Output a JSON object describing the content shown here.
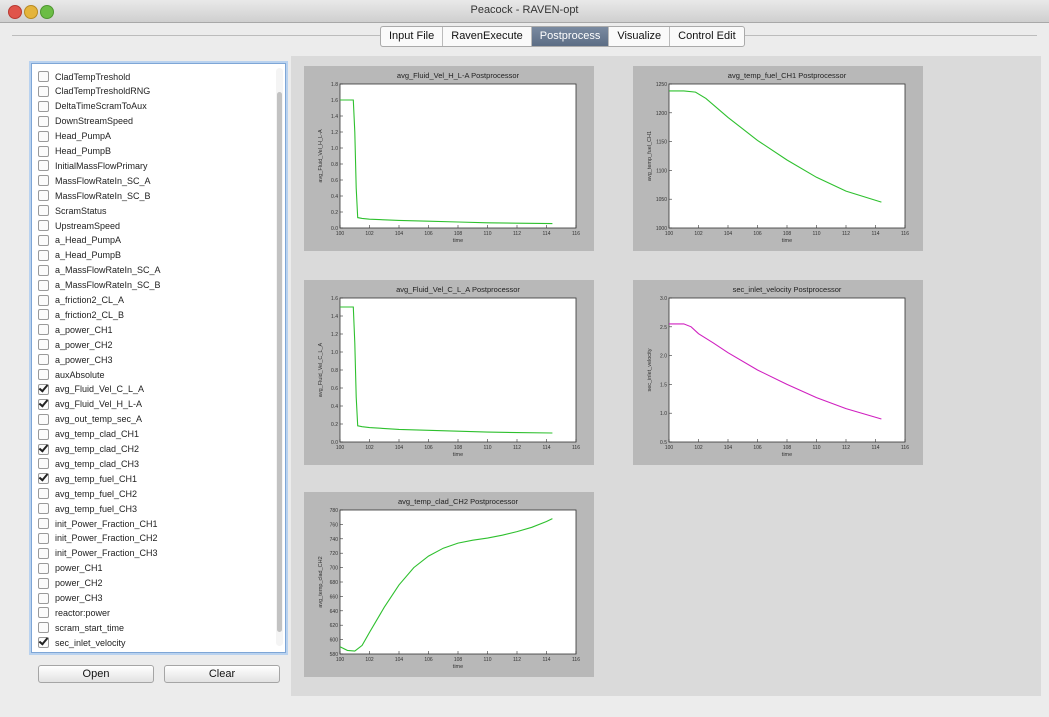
{
  "window": {
    "title": "Peacock - RAVEN-opt"
  },
  "tabs": [
    {
      "label": "Input File",
      "active": false
    },
    {
      "label": "RavenExecute",
      "active": false
    },
    {
      "label": "Postprocess",
      "active": true
    },
    {
      "label": "Visualize",
      "active": false
    },
    {
      "label": "Control Edit",
      "active": false
    }
  ],
  "variables": [
    {
      "label": "CladTempTreshold",
      "checked": false
    },
    {
      "label": "CladTempTresholdRNG",
      "checked": false
    },
    {
      "label": "DeltaTimeScramToAux",
      "checked": false
    },
    {
      "label": "DownStreamSpeed",
      "checked": false
    },
    {
      "label": "Head_PumpA",
      "checked": false
    },
    {
      "label": "Head_PumpB",
      "checked": false
    },
    {
      "label": "InitialMassFlowPrimary",
      "checked": false
    },
    {
      "label": "MassFlowRateIn_SC_A",
      "checked": false
    },
    {
      "label": "MassFlowRateIn_SC_B",
      "checked": false
    },
    {
      "label": "ScramStatus",
      "checked": false
    },
    {
      "label": "UpstreamSpeed",
      "checked": false
    },
    {
      "label": "a_Head_PumpA",
      "checked": false
    },
    {
      "label": "a_Head_PumpB",
      "checked": false
    },
    {
      "label": "a_MassFlowRateIn_SC_A",
      "checked": false
    },
    {
      "label": "a_MassFlowRateIn_SC_B",
      "checked": false
    },
    {
      "label": "a_friction2_CL_A",
      "checked": false
    },
    {
      "label": "a_friction2_CL_B",
      "checked": false
    },
    {
      "label": "a_power_CH1",
      "checked": false
    },
    {
      "label": "a_power_CH2",
      "checked": false
    },
    {
      "label": "a_power_CH3",
      "checked": false
    },
    {
      "label": "auxAbsolute",
      "checked": false
    },
    {
      "label": "avg_Fluid_Vel_C_L_A",
      "checked": true
    },
    {
      "label": "avg_Fluid_Vel_H_L-A",
      "checked": true
    },
    {
      "label": "avg_out_temp_sec_A",
      "checked": false
    },
    {
      "label": "avg_temp_clad_CH1",
      "checked": false
    },
    {
      "label": "avg_temp_clad_CH2",
      "checked": true
    },
    {
      "label": "avg_temp_clad_CH3",
      "checked": false
    },
    {
      "label": "avg_temp_fuel_CH1",
      "checked": true
    },
    {
      "label": "avg_temp_fuel_CH2",
      "checked": false
    },
    {
      "label": "avg_temp_fuel_CH3",
      "checked": false
    },
    {
      "label": "init_Power_Fraction_CH1",
      "checked": false
    },
    {
      "label": "init_Power_Fraction_CH2",
      "checked": false
    },
    {
      "label": "init_Power_Fraction_CH3",
      "checked": false
    },
    {
      "label": "power_CH1",
      "checked": false
    },
    {
      "label": "power_CH2",
      "checked": false
    },
    {
      "label": "power_CH3",
      "checked": false
    },
    {
      "label": "reactor:power",
      "checked": false
    },
    {
      "label": "scram_start_time",
      "checked": false
    },
    {
      "label": "sec_inlet_velocity",
      "checked": true
    }
  ],
  "buttons": {
    "open": "Open",
    "clear": "Clear"
  },
  "colors": {
    "green": "#2ec02e",
    "magenta": "#d020c0"
  },
  "chart_data": [
    {
      "type": "line",
      "title": "avg_Fluid_Vel_H_L-A Postprocessor",
      "xlabel": "time",
      "ylabel": "avg_Fluid_Vel_H_L-A",
      "xlim": [
        100,
        116
      ],
      "ylim": [
        0.0,
        1.8
      ],
      "xticks": [
        "100",
        "102",
        "104",
        "106",
        "108",
        "110",
        "112",
        "114",
        "116"
      ],
      "yticks": [
        "0.0",
        "0.2",
        "0.4",
        "0.6",
        "0.8",
        "1.0",
        "1.2",
        "1.4",
        "1.6",
        "1.8"
      ],
      "series": [
        {
          "color": "#2ec02e",
          "x": [
            100,
            100.4,
            100.9,
            101.0,
            101.1,
            101.2,
            101.5,
            102,
            104,
            106,
            108,
            110,
            112,
            114.4
          ],
          "y": [
            1.6,
            1.6,
            1.6,
            1.2,
            0.5,
            0.13,
            0.12,
            0.11,
            0.095,
            0.085,
            0.075,
            0.065,
            0.06,
            0.055
          ]
        }
      ]
    },
    {
      "type": "line",
      "title": "avg_temp_fuel_CH1 Postprocessor",
      "xlabel": "time",
      "ylabel": "avg_temp_fuel_CH1",
      "xlim": [
        100,
        116
      ],
      "ylim": [
        1000,
        1250
      ],
      "xticks": [
        "100",
        "102",
        "104",
        "106",
        "108",
        "110",
        "112",
        "114",
        "116"
      ],
      "yticks": [
        "1000",
        "1050",
        "1100",
        "1150",
        "1200",
        "1250"
      ],
      "series": [
        {
          "color": "#2ec02e",
          "x": [
            100,
            101,
            101.8,
            102.5,
            104,
            106,
            108,
            110,
            112,
            114.4
          ],
          "y": [
            1238,
            1238,
            1236,
            1225,
            1192,
            1152,
            1118,
            1088,
            1064,
            1045
          ]
        }
      ]
    },
    {
      "type": "line",
      "title": "avg_Fluid_Vel_C_L_A Postprocessor",
      "xlabel": "time",
      "ylabel": "avg_Fluid_Vel_C_L_A",
      "xlim": [
        100,
        116
      ],
      "ylim": [
        0.0,
        1.6
      ],
      "xticks": [
        "100",
        "102",
        "104",
        "106",
        "108",
        "110",
        "112",
        "114",
        "116"
      ],
      "yticks": [
        "0.0",
        "0.2",
        "0.4",
        "0.6",
        "0.8",
        "1.0",
        "1.2",
        "1.4",
        "1.6"
      ],
      "series": [
        {
          "color": "#2ec02e",
          "x": [
            100,
            100.4,
            100.9,
            101.0,
            101.1,
            101.2,
            101.5,
            102,
            104,
            106,
            108,
            110,
            112,
            114.4
          ],
          "y": [
            1.5,
            1.5,
            1.5,
            1.1,
            0.5,
            0.18,
            0.17,
            0.16,
            0.14,
            0.13,
            0.12,
            0.11,
            0.105,
            0.1
          ]
        }
      ]
    },
    {
      "type": "line",
      "title": "sec_inlet_velocity Postprocessor",
      "xlabel": "time",
      "ylabel": "sec_inlet_velocity",
      "xlim": [
        100,
        116
      ],
      "ylim": [
        0.5,
        3.0
      ],
      "xticks": [
        "100",
        "102",
        "104",
        "106",
        "108",
        "110",
        "112",
        "114",
        "116"
      ],
      "yticks": [
        "0.5",
        "1.0",
        "1.5",
        "2.0",
        "2.5",
        "3.0"
      ],
      "series": [
        {
          "color": "#d020c0",
          "x": [
            100,
            101,
            101.5,
            102,
            103,
            104,
            106,
            108,
            110,
            112,
            114.4
          ],
          "y": [
            2.55,
            2.55,
            2.5,
            2.38,
            2.22,
            2.05,
            1.75,
            1.5,
            1.27,
            1.08,
            0.9
          ]
        }
      ]
    },
    {
      "type": "line",
      "title": "avg_temp_clad_CH2 Postprocessor",
      "xlabel": "time",
      "ylabel": "avg_temp_clad_CH2",
      "xlim": [
        100,
        116
      ],
      "ylim": [
        580,
        780
      ],
      "xticks": [
        "100",
        "102",
        "104",
        "106",
        "108",
        "110",
        "112",
        "114",
        "116"
      ],
      "yticks": [
        "580",
        "600",
        "620",
        "640",
        "660",
        "680",
        "700",
        "720",
        "740",
        "760",
        "780"
      ],
      "series": [
        {
          "color": "#2ec02e",
          "x": [
            100,
            100.5,
            101,
            101.5,
            102,
            103,
            104,
            105,
            106,
            107,
            108,
            109,
            110,
            111,
            112,
            113,
            114,
            114.4
          ],
          "y": [
            590,
            585,
            584,
            592,
            610,
            645,
            676,
            700,
            716,
            727,
            734,
            738,
            741,
            745,
            750,
            756,
            764,
            768
          ]
        }
      ]
    }
  ]
}
